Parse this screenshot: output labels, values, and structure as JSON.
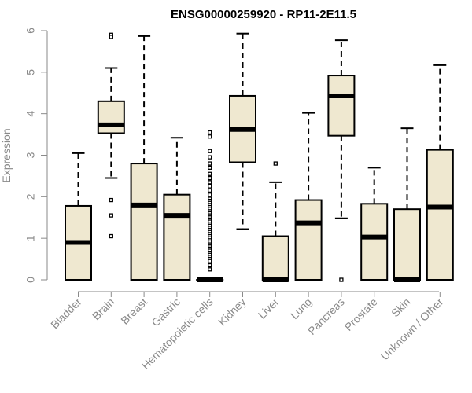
{
  "chart_data": {
    "type": "boxplot",
    "title": "ENSG00000259920 - RP11-2E11.5",
    "xlabel": "",
    "ylabel": "Expression",
    "ylim": [
      0,
      6
    ],
    "yticks": [
      0,
      1,
      2,
      3,
      4,
      5,
      6
    ],
    "yticklabels": [
      "0",
      "1",
      "2",
      "3",
      "4",
      "5",
      "6"
    ],
    "box_fill": "#efe8d0",
    "box_stroke": "#000000",
    "categories": [
      "Bladder",
      "Brain",
      "Breast",
      "Gastric",
      "Hematopoietic cells",
      "Kidney",
      "Liver",
      "Lung",
      "Pancreas",
      "Prostate",
      "Skin",
      "Unknown / Other"
    ],
    "boxes": [
      {
        "name": "Bladder",
        "whisker_low": 0,
        "q1": 0,
        "median": 0.9,
        "q3": 1.78,
        "whisker_high": 3.05,
        "outliers": []
      },
      {
        "name": "Brain",
        "whisker_low": 2.45,
        "q1": 3.53,
        "median": 3.73,
        "q3": 4.3,
        "whisker_high": 5.1,
        "outliers": [
          5.9,
          5.85,
          1.92,
          1.55,
          1.05
        ]
      },
      {
        "name": "Breast",
        "whisker_low": 0,
        "q1": 0,
        "median": 1.8,
        "q3": 2.8,
        "whisker_high": 5.87,
        "outliers": []
      },
      {
        "name": "Gastric",
        "whisker_low": 0,
        "q1": 0,
        "median": 1.55,
        "q3": 2.05,
        "whisker_high": 3.42,
        "outliers": []
      },
      {
        "name": "Hematopoietic cells",
        "whisker_low": 0,
        "q1": 0,
        "median": 0,
        "q3": 0,
        "whisker_high": 0,
        "outliers": [
          3.55,
          3.45,
          3.1,
          2.95,
          2.8,
          2.7,
          2.55,
          2.45,
          2.35,
          2.25,
          2.15,
          2.05,
          1.95,
          1.9,
          1.85,
          1.8,
          1.75,
          1.7,
          1.65,
          1.6,
          1.55,
          1.5,
          1.45,
          1.4,
          1.35,
          1.3,
          1.25,
          1.2,
          1.15,
          1.1,
          1.05,
          1.0,
          0.95,
          0.9,
          0.85,
          0.8,
          0.75,
          0.7,
          0.65,
          0.6,
          0.55,
          0.5,
          0.45,
          0.35,
          0.25
        ]
      },
      {
        "name": "Kidney",
        "whisker_low": 1.22,
        "q1": 2.83,
        "median": 3.62,
        "q3": 4.43,
        "whisker_high": 5.93,
        "outliers": []
      },
      {
        "name": "Liver",
        "whisker_low": 0,
        "q1": 0,
        "median": 0,
        "q3": 1.05,
        "whisker_high": 2.35,
        "outliers": [
          2.8
        ]
      },
      {
        "name": "Lung",
        "whisker_low": 0,
        "q1": 0,
        "median": 1.37,
        "q3": 1.92,
        "whisker_high": 4.02,
        "outliers": []
      },
      {
        "name": "Pancreas",
        "whisker_low": 1.48,
        "q1": 3.47,
        "median": 4.43,
        "q3": 4.92,
        "whisker_high": 5.77,
        "outliers": [
          0
        ]
      },
      {
        "name": "Prostate",
        "whisker_low": 0,
        "q1": 0,
        "median": 1.03,
        "q3": 1.83,
        "whisker_high": 2.7,
        "outliers": []
      },
      {
        "name": "Skin",
        "whisker_low": 0,
        "q1": 0,
        "median": 0,
        "q3": 1.7,
        "whisker_high": 3.65,
        "outliers": []
      },
      {
        "name": "Unknown / Other",
        "whisker_low": 0,
        "q1": 0,
        "median": 1.75,
        "q3": 3.13,
        "whisker_high": 5.17,
        "outliers": []
      }
    ]
  }
}
